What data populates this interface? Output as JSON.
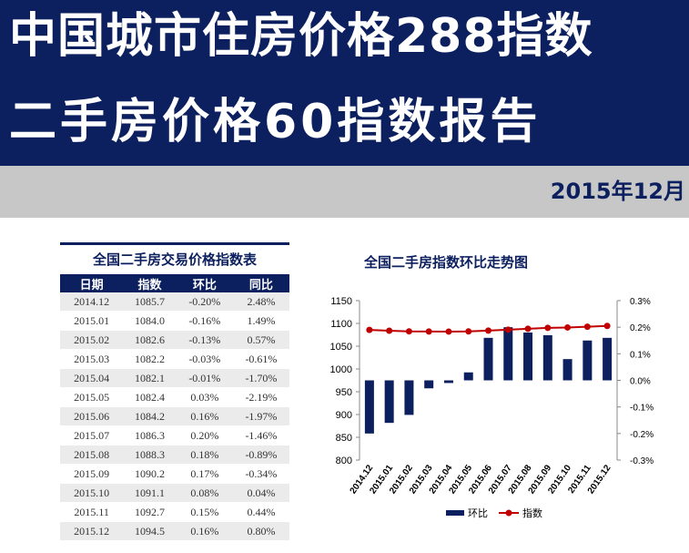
{
  "header": {
    "title_line1": "中国城市住房价格288指数",
    "title_line2": "二手房价格60指数报告",
    "date": "2015年12月"
  },
  "table": {
    "title": "全国二手房交易价格指数表",
    "columns": [
      "日期",
      "指数",
      "环比",
      "同比"
    ],
    "rows": [
      [
        "2014.12",
        "1085.7",
        "-0.20%",
        "2.48%"
      ],
      [
        "2015.01",
        "1084.0",
        "-0.16%",
        "1.49%"
      ],
      [
        "2015.02",
        "1082.6",
        "-0.13%",
        "0.57%"
      ],
      [
        "2015.03",
        "1082.2",
        "-0.03%",
        "-0.61%"
      ],
      [
        "2015.04",
        "1082.1",
        "-0.01%",
        "-1.70%"
      ],
      [
        "2015.05",
        "1082.4",
        "0.03%",
        "-2.19%"
      ],
      [
        "2015.06",
        "1084.2",
        "0.16%",
        "-1.97%"
      ],
      [
        "2015.07",
        "1086.3",
        "0.20%",
        "-1.46%"
      ],
      [
        "2015.08",
        "1088.3",
        "0.18%",
        "-0.89%"
      ],
      [
        "2015.09",
        "1090.2",
        "0.17%",
        "-0.34%"
      ],
      [
        "2015.10",
        "1091.1",
        "0.08%",
        "0.04%"
      ],
      [
        "2015.11",
        "1092.7",
        "0.15%",
        "0.44%"
      ],
      [
        "2015.12",
        "1094.5",
        "0.16%",
        "0.80%"
      ]
    ]
  },
  "chart_data": {
    "type": "bar",
    "title": "全国二手房指数环比走势图",
    "categories": [
      "2014.12",
      "2015.01",
      "2015.02",
      "2015.03",
      "2015.04",
      "2015.05",
      "2015.06",
      "2015.07",
      "2015.08",
      "2015.09",
      "2015.10",
      "2015.11",
      "2015.12"
    ],
    "y_left": {
      "ylim": [
        800,
        1150
      ],
      "ticks": [
        "800",
        "850",
        "900",
        "950",
        "1000",
        "1050",
        "1100",
        "1150"
      ]
    },
    "y_right": {
      "ylim": [
        -0.3,
        0.3
      ],
      "ticks": [
        "-0.3%",
        "-0.2%",
        "-0.1%",
        "0.0%",
        "0.1%",
        "0.2%",
        "0.3%"
      ]
    },
    "series": [
      {
        "name": "环比",
        "type": "bar",
        "axis": "right",
        "color": "#0c1f5e",
        "values": [
          -0.2,
          -0.16,
          -0.13,
          -0.03,
          -0.01,
          0.03,
          0.16,
          0.2,
          0.18,
          0.17,
          0.08,
          0.15,
          0.16
        ]
      },
      {
        "name": "指数",
        "type": "line",
        "axis": "left",
        "color": "#c00000",
        "values": [
          1085.7,
          1084.0,
          1082.6,
          1082.2,
          1082.1,
          1082.4,
          1084.2,
          1086.3,
          1088.3,
          1090.2,
          1091.1,
          1092.7,
          1094.5
        ]
      }
    ],
    "legend": "bottom",
    "grid": false
  }
}
